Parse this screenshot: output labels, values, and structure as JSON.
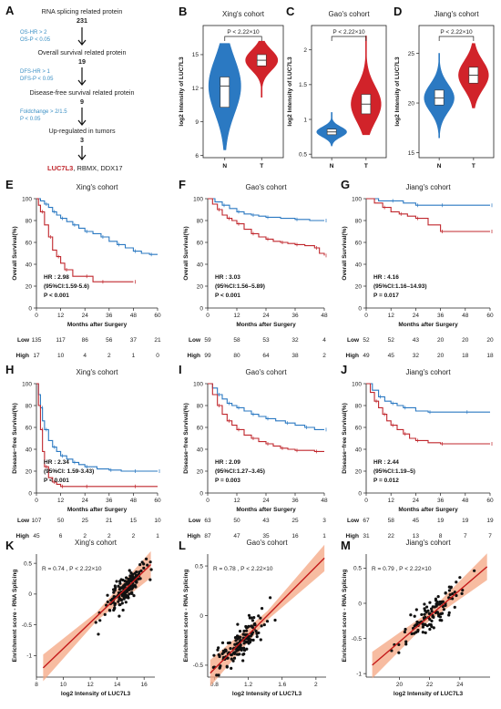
{
  "panels": {
    "A": "A",
    "B": "B",
    "C": "C",
    "D": "D",
    "E": "E",
    "F": "F",
    "G": "G",
    "H": "H",
    "I": "I",
    "J": "J",
    "K": "K",
    "L": "L",
    "M": "M"
  },
  "flowchart": {
    "steps": [
      {
        "label": "RNA splicing related protein",
        "count": "231"
      },
      {
        "label": "Overall survival related protein",
        "count": "19"
      },
      {
        "label": "Disease-free survival related protein",
        "count": "9"
      },
      {
        "label": "Up-regulated in tumors",
        "count": "3"
      }
    ],
    "criteria": [
      [
        "OS-HR > 2",
        "OS-P < 0.05"
      ],
      [
        "DFS-HR > 1",
        "DFS-P < 0.05"
      ],
      [
        "Foldchange > 2/1.5",
        "P < 0.05"
      ]
    ],
    "final_highlight": "LUC7L3",
    "final_rest": ", RBMX, DDX17",
    "highlight_color": "#c0272d",
    "criteria_color": "#3a8fc4"
  },
  "colors": {
    "normal": "#2b79c2",
    "tumor": "#d1232a",
    "low": "#2b79c2",
    "high": "#c0272d",
    "ci": "#f4a582"
  },
  "chart_data": [
    {
      "id": "B",
      "type": "violin",
      "title": "Xing's cohort",
      "ylabel": "log2 Intensity of LUC7L3",
      "categories": [
        "N",
        "T"
      ],
      "yticks": [
        6,
        9,
        12,
        15
      ],
      "ylim": [
        5.8,
        17.6
      ],
      "pvalue_label": "P < 2.22×10",
      "series": [
        {
          "name": "N",
          "median": 12.2,
          "q1": 10.3,
          "q3": 13.0,
          "min": 6.5,
          "max": 16.0
        },
        {
          "name": "T",
          "median": 14.5,
          "q1": 14.0,
          "q3": 15.0,
          "min": 11.2,
          "max": 16.2
        }
      ]
    },
    {
      "id": "C",
      "type": "violin",
      "title": "Gao's cohort",
      "ylabel": "log2 Intensity of LUC7L3",
      "categories": [
        "N",
        "T"
      ],
      "yticks": [
        0.5,
        1.0,
        1.5,
        2.0
      ],
      "ylim": [
        0.45,
        2.35
      ],
      "pvalue_label": "P < 2.22×10",
      "series": [
        {
          "name": "N",
          "median": 0.82,
          "q1": 0.78,
          "q3": 0.86,
          "min": 0.62,
          "max": 1.1
        },
        {
          "name": "T",
          "median": 1.22,
          "q1": 1.08,
          "q3": 1.36,
          "min": 0.78,
          "max": 2.2
        }
      ]
    },
    {
      "id": "D",
      "type": "violin",
      "title": "Jiang's cohort",
      "ylabel": "log2 Intensity of LUC7L3",
      "categories": [
        "N",
        "T"
      ],
      "yticks": [
        15,
        20,
        25
      ],
      "ylim": [
        14.5,
        27.8
      ],
      "pvalue_label": "P < 2.22×10",
      "series": [
        {
          "name": "N",
          "median": 20.5,
          "q1": 19.8,
          "q3": 21.3,
          "min": 16.5,
          "max": 25.0
        },
        {
          "name": "T",
          "median": 22.8,
          "q1": 22.0,
          "q3": 23.6,
          "min": 19.5,
          "max": 26.0
        }
      ]
    },
    {
      "id": "E",
      "type": "line",
      "title": "Xing's cohort",
      "ylabel": "Overall Survival(%)",
      "xlabel": "Months after Surgery",
      "xticks": [
        0,
        12,
        24,
        36,
        48,
        60
      ],
      "yticks": [
        0,
        20,
        40,
        60,
        80,
        100
      ],
      "xlim": [
        0,
        60
      ],
      "ylim": [
        0,
        100
      ],
      "stats": [
        "HR : 2.98",
        "(95%CI:1.59-5.6)",
        "P < 0.001"
      ],
      "series": [
        {
          "name": "Low",
          "x": [
            0,
            2,
            4,
            6,
            8,
            10,
            12,
            15,
            18,
            21,
            24,
            28,
            32,
            36,
            40,
            44,
            48,
            52,
            56,
            60
          ],
          "y": [
            100,
            98,
            95,
            92,
            88,
            85,
            82,
            79,
            76,
            73,
            70,
            68,
            65,
            61,
            58,
            55,
            52,
            50,
            49,
            49
          ]
        },
        {
          "name": "High",
          "x": [
            0,
            1,
            2,
            4,
            6,
            8,
            10,
            12,
            14,
            18,
            24,
            28,
            32,
            40,
            48
          ],
          "y": [
            100,
            94,
            88,
            76,
            65,
            53,
            47,
            41,
            35,
            29,
            29,
            24,
            24,
            24,
            24
          ]
        }
      ],
      "risk_table": {
        "Low": [
          "135",
          "117",
          "86",
          "56",
          "37",
          "21"
        ],
        "High": [
          "17",
          "10",
          "4",
          "2",
          "1",
          "0"
        ]
      }
    },
    {
      "id": "F",
      "type": "line",
      "title": "Gao's cohort",
      "ylabel": "Overall Survival(%)",
      "xlabel": "Months after Surgery",
      "xticks": [
        0,
        12,
        24,
        36,
        48
      ],
      "yticks": [
        0,
        20,
        40,
        60,
        80,
        100
      ],
      "xlim": [
        0,
        48
      ],
      "ylim": [
        0,
        100
      ],
      "stats": [
        "HR : 3.03",
        "(95%CI:1.56–5.89)",
        "P < 0.001"
      ],
      "series": [
        {
          "name": "Low",
          "x": [
            0,
            3,
            6,
            9,
            12,
            15,
            18,
            21,
            24,
            30,
            36,
            42,
            48
          ],
          "y": [
            100,
            97,
            94,
            91,
            88,
            86,
            85,
            84,
            83,
            82,
            81,
            80,
            80
          ]
        },
        {
          "name": "High",
          "x": [
            0,
            2,
            4,
            6,
            8,
            10,
            12,
            15,
            18,
            21,
            24,
            27,
            30,
            33,
            36,
            40,
            44,
            46,
            48
          ],
          "y": [
            100,
            95,
            90,
            85,
            82,
            80,
            77,
            72,
            68,
            65,
            63,
            61,
            60,
            59,
            58,
            57,
            55,
            50,
            48
          ]
        }
      ],
      "risk_table": {
        "Low": [
          "59",
          "58",
          "53",
          "32",
          "4"
        ],
        "High": [
          "99",
          "80",
          "64",
          "38",
          "2"
        ]
      }
    },
    {
      "id": "G",
      "type": "line",
      "title": "Jiang's cohort",
      "ylabel": "Overall Survival(%)",
      "xlabel": "Months after Surgery",
      "xticks": [
        0,
        12,
        24,
        36,
        48,
        60
      ],
      "yticks": [
        0,
        20,
        40,
        60,
        80,
        100
      ],
      "xlim": [
        0,
        60
      ],
      "ylim": [
        0,
        100
      ],
      "stats": [
        "HR : 4.16",
        "(95%CI:1.16–14.93)",
        "P = 0.017"
      ],
      "series": [
        {
          "name": "Low",
          "x": [
            0,
            6,
            12,
            18,
            24,
            30,
            36,
            48,
            60
          ],
          "y": [
            100,
            98,
            98,
            96,
            94,
            94,
            94,
            94,
            94
          ]
        },
        {
          "name": "High",
          "x": [
            0,
            4,
            8,
            12,
            16,
            20,
            24,
            30,
            36,
            48,
            60
          ],
          "y": [
            100,
            96,
            92,
            88,
            86,
            84,
            82,
            76,
            70,
            70,
            70
          ]
        }
      ],
      "risk_table": {
        "Low": [
          "52",
          "52",
          "43",
          "20",
          "20",
          "20"
        ],
        "High": [
          "49",
          "45",
          "32",
          "20",
          "18",
          "18"
        ]
      }
    },
    {
      "id": "H",
      "type": "line",
      "title": "Xing's cohort",
      "ylabel": "Disease−free Survival(%)",
      "xlabel": "Months after Surgery",
      "xticks": [
        0,
        12,
        24,
        36,
        48,
        60
      ],
      "yticks": [
        0,
        20,
        40,
        60,
        80,
        100
      ],
      "xlim": [
        0,
        60
      ],
      "ylim": [
        0,
        100
      ],
      "stats": [
        "HR : 2.34",
        "(95%CI: 1.59-3.43)",
        "P < 0.001"
      ],
      "series": [
        {
          "name": "Low",
          "x": [
            0,
            1,
            2,
            3,
            4,
            6,
            8,
            10,
            12,
            15,
            18,
            21,
            24,
            30,
            36,
            42,
            48,
            54,
            60
          ],
          "y": [
            100,
            90,
            78,
            66,
            58,
            48,
            42,
            38,
            34,
            31,
            28,
            26,
            24,
            22,
            21,
            20,
            20,
            20,
            20
          ]
        },
        {
          "name": "High",
          "x": [
            0,
            1,
            2,
            3,
            4,
            6,
            8,
            10,
            12,
            18,
            24,
            36,
            48,
            60
          ],
          "y": [
            100,
            80,
            58,
            38,
            24,
            14,
            10,
            8,
            6,
            6,
            6,
            6,
            6,
            6
          ]
        }
      ],
      "risk_table": {
        "Low": [
          "107",
          "50",
          "25",
          "21",
          "15",
          "10"
        ],
        "High": [
          "45",
          "6",
          "2",
          "2",
          "2",
          "1"
        ]
      }
    },
    {
      "id": "I",
      "type": "line",
      "title": "Gao's cohort",
      "ylabel": "Disease−free Survival(%)",
      "xlabel": "Months after Surgery",
      "xticks": [
        0,
        12,
        24,
        36,
        48
      ],
      "yticks": [
        0,
        20,
        40,
        60,
        80,
        100
      ],
      "xlim": [
        0,
        48
      ],
      "ylim": [
        0,
        100
      ],
      "stats": [
        "HR : 2.09",
        "(95%CI:1.27–3.45)",
        "P = 0.003"
      ],
      "series": [
        {
          "name": "Low",
          "x": [
            0,
            2,
            4,
            6,
            8,
            10,
            12,
            15,
            18,
            21,
            24,
            28,
            32,
            36,
            40,
            44,
            48
          ],
          "y": [
            100,
            96,
            90,
            86,
            82,
            80,
            78,
            75,
            72,
            70,
            68,
            66,
            64,
            62,
            60,
            58,
            58
          ]
        },
        {
          "name": "High",
          "x": [
            0,
            2,
            4,
            6,
            8,
            10,
            12,
            15,
            18,
            21,
            24,
            27,
            30,
            33,
            36,
            40,
            44,
            48
          ],
          "y": [
            100,
            90,
            80,
            72,
            66,
            62,
            58,
            53,
            50,
            47,
            45,
            43,
            41,
            40,
            39,
            39,
            38,
            38
          ]
        }
      ],
      "risk_table": {
        "Low": [
          "63",
          "50",
          "43",
          "25",
          "3"
        ],
        "High": [
          "87",
          "47",
          "35",
          "16",
          "1"
        ]
      }
    },
    {
      "id": "J",
      "type": "line",
      "title": "Jiang's cohort",
      "ylabel": "Disease−free Survival(%)",
      "xlabel": "Months after Surgery",
      "xticks": [
        0,
        12,
        24,
        36,
        48,
        60
      ],
      "yticks": [
        0,
        20,
        40,
        60,
        80,
        100
      ],
      "xlim": [
        0,
        60
      ],
      "ylim": [
        0,
        100
      ],
      "stats": [
        "HR : 2.44",
        "(95%CI:1.19–5)",
        "P = 0.012"
      ],
      "series": [
        {
          "name": "Low",
          "x": [
            0,
            3,
            6,
            9,
            12,
            15,
            18,
            24,
            30,
            36,
            48,
            60
          ],
          "y": [
            100,
            94,
            88,
            84,
            82,
            80,
            78,
            75,
            74,
            74,
            74,
            74
          ]
        },
        {
          "name": "High",
          "x": [
            0,
            2,
            4,
            6,
            8,
            10,
            12,
            15,
            18,
            21,
            24,
            30,
            36,
            48,
            60
          ],
          "y": [
            100,
            92,
            84,
            78,
            72,
            66,
            62,
            58,
            54,
            50,
            48,
            46,
            45,
            45,
            45
          ]
        }
      ],
      "risk_table": {
        "Low": [
          "67",
          "58",
          "45",
          "19",
          "19",
          "19"
        ],
        "High": [
          "31",
          "22",
          "13",
          "8",
          "7",
          "7"
        ]
      }
    },
    {
      "id": "K",
      "type": "scatter",
      "title": "Xing's cohort",
      "ylabel": "Enrichment score - RNA Splicing",
      "xlabel": "log2 Intensity of LUC7L3",
      "xticks": [
        8,
        10,
        12,
        14,
        16
      ],
      "yticks": [
        -1.0,
        -0.5,
        0.0,
        0.5
      ],
      "xlim": [
        8,
        16.8
      ],
      "ylim": [
        -1.35,
        0.65
      ],
      "annotation": "R = 0.74 , P < 2.22×10",
      "fit": {
        "x0": 8.5,
        "y0": -1.2,
        "x1": 16.5,
        "y1": 0.48
      },
      "seed": 11,
      "n": 170,
      "cx": 14.6,
      "sx": 1.1,
      "noise": 0.18
    },
    {
      "id": "L",
      "type": "scatter",
      "title": "Gao's cohort",
      "ylabel": "Enrichment score - RNA Splicing",
      "xlabel": "log2 Intensity of LUC7L3",
      "xticks": [
        0.8,
        1.2,
        1.6,
        2.0
      ],
      "yticks": [
        -0.5,
        0.0,
        0.5
      ],
      "xlim": [
        0.72,
        2.12
      ],
      "ylim": [
        -0.62,
        0.62
      ],
      "annotation": "R = 0.78 , P < 2.22×10",
      "fit": {
        "x0": 0.75,
        "y0": -0.58,
        "x1": 2.1,
        "y1": 0.58
      },
      "seed": 23,
      "n": 150,
      "cx": 1.12,
      "sx": 0.22,
      "noise": 0.12
    },
    {
      "id": "M",
      "type": "scatter",
      "title": "Jiang's cohort",
      "ylabel": "Enrichment score - RNA Splicing",
      "xlabel": "log2 Intensity of LUC7L3",
      "xticks": [
        20,
        22,
        24
      ],
      "yticks": [
        -1.0,
        -0.5,
        0.0,
        0.5
      ],
      "xlim": [
        17.8,
        26.0
      ],
      "ylim": [
        -1.05,
        0.7
      ],
      "annotation": "R = 0.79 , P < 2.22×10",
      "fit": {
        "x0": 18.2,
        "y0": -0.88,
        "x1": 25.8,
        "y1": 0.52
      },
      "seed": 37,
      "n": 110,
      "cx": 22.2,
      "sx": 1.5,
      "noise": 0.16
    }
  ]
}
